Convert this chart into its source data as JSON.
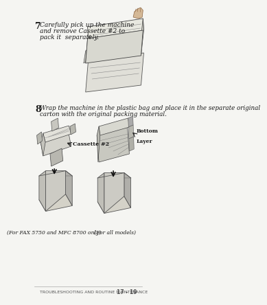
{
  "bg_color": "#f5f5f2",
  "step7_number": "7",
  "step7_text_line1": "Carefully pick up the machine",
  "step7_text_line2": "and remove Cassette #2 to",
  "step7_text_line3": "pack it  separately.",
  "step8_number": "8",
  "step8_text_line1": "Wrap the machine in the plastic bag and place it in the separate original",
  "step8_text_line2": "carton with the original packing material.",
  "cassette2_label": "Cassette #2",
  "bottom_layer_line1": "Bottom",
  "bottom_layer_line2": "Layer",
  "caption_left": "(For FAX 5750 and MFC 8700 only)",
  "caption_right": "(For all models)",
  "footer_text": "TROUBLESHOOTING AND ROUTINE MAINTENANCE",
  "footer_page": "17 - 19",
  "text_color": "#1a1a1a",
  "footer_color": "#555555",
  "line_color": "#aaaaaa"
}
